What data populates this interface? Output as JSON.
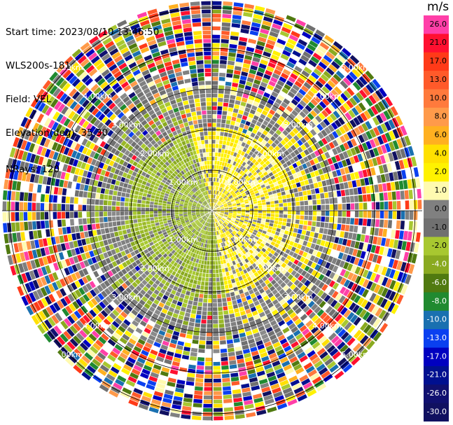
{
  "header": {
    "start_time": "Start time: 2023/08/10 13:46:50",
    "instrument": "WLS200s-181",
    "field": "Field: VEL",
    "elevation": "Elevation(deg): 35.30",
    "nrays": "NRays: 120"
  },
  "colorbar": {
    "unit": "m/s",
    "ticks": [
      "26.0",
      "21.0",
      "17.0",
      "13.0",
      "10.0",
      "8.0",
      "6.0",
      "4.0",
      "2.0",
      "1.0",
      "0.0",
      "-1.0",
      "-2.0",
      "-4.0",
      "-6.0",
      "-8.0",
      "-10.0",
      "-13.0",
      "-17.0",
      "-21.0",
      "-26.0",
      "-30.0"
    ],
    "colors": [
      "#ff3fa8",
      "#ff1030",
      "#ff3a18",
      "#ff5a2a",
      "#ff7a3c",
      "#ff9a4a",
      "#ffb020",
      "#ffe000",
      "#fff200",
      "#fffab0",
      "#808080",
      "#707070",
      "#a8c830",
      "#8aaa20",
      "#507a10",
      "#208a30",
      "#1a70b0",
      "#0a40f0",
      "#0000c0",
      "#001090",
      "#101070",
      "#101060"
    ]
  },
  "chart_data": {
    "type": "ppi",
    "field": "VEL",
    "units": "m/s",
    "rays": 120,
    "range_ring_labels": [
      "1.00km",
      "2.00km",
      "3.00km",
      "4.00km",
      "5.00km"
    ],
    "range_rings_km": [
      1,
      2,
      3,
      4,
      5
    ]
  }
}
